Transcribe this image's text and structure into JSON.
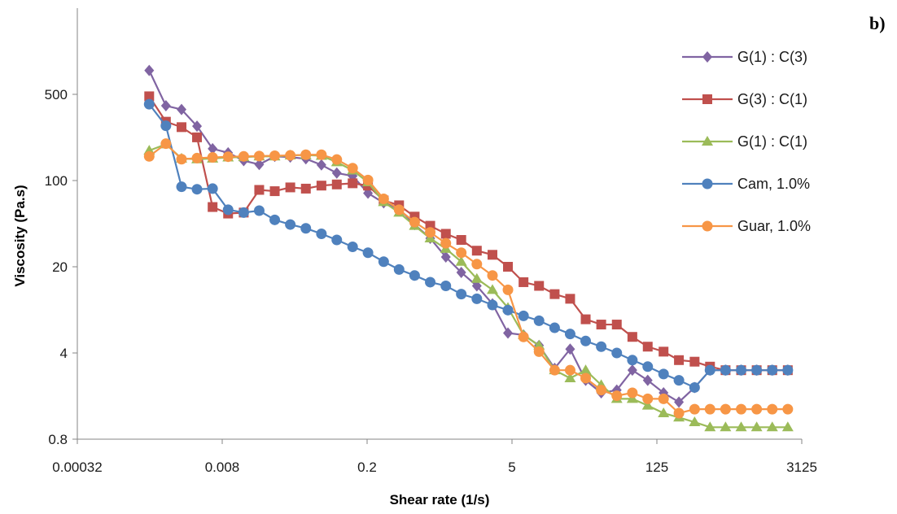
{
  "panel_label": "b)",
  "chart_data": {
    "type": "line",
    "xlabel": "Shear rate (1/s)",
    "ylabel": "Viscosity (Pa.s)",
    "x_scale": "log5",
    "y_scale": "log5",
    "xlim": [
      0.00032,
      3125
    ],
    "ylim": [
      0.8,
      2500
    ],
    "x_ticks": [
      0.00032,
      0.008,
      0.2,
      5,
      125,
      3125
    ],
    "x_tick_labels": [
      "0.00032",
      "0.008",
      "0.2",
      "5",
      "125",
      "3125"
    ],
    "y_ticks": [
      0.8,
      4,
      20,
      100,
      500
    ],
    "y_tick_labels": [
      "0.8",
      "4",
      "20",
      "100",
      "500"
    ],
    "grid": false,
    "legend": "right",
    "series": [
      {
        "name": "G(1) : C(3)",
        "color": "#8064A2",
        "marker": "diamond",
        "x": [
          0.00158,
          0.00229,
          0.00324,
          0.00457,
          0.00646,
          0.00912,
          0.0129,
          0.0182,
          0.0257,
          0.0363,
          0.0513,
          0.0725,
          0.102,
          0.145,
          0.204,
          0.289,
          0.407,
          0.575,
          0.813,
          1.15,
          1.62,
          2.29,
          3.24,
          4.57,
          6.46,
          9.12,
          12.9,
          18.2,
          25.7,
          36.3,
          51.3,
          72.5,
          102,
          145,
          204,
          289,
          407,
          575,
          813,
          1148,
          1622,
          2291
        ],
        "y": [
          781,
          404,
          377,
          276,
          181,
          168,
          145,
          135,
          157,
          155,
          150,
          134,
          115,
          109,
          79,
          66,
          59,
          44,
          34,
          24,
          18,
          14,
          10,
          5.8,
          5.6,
          4.6,
          3.0,
          4.3,
          2.4,
          1.9,
          2.0,
          2.9,
          2.4,
          1.9,
          1.6,
          2.1,
          2.9,
          2.9,
          2.9,
          2.9,
          2.9,
          2.9
        ]
      },
      {
        "name": "G(3) : C(1)",
        "color": "#C0504D",
        "marker": "square",
        "x": [
          0.00158,
          0.00229,
          0.00324,
          0.00457,
          0.00646,
          0.00912,
          0.0129,
          0.0182,
          0.0257,
          0.0363,
          0.0513,
          0.0725,
          0.102,
          0.145,
          0.204,
          0.289,
          0.407,
          0.575,
          0.813,
          1.15,
          1.62,
          2.29,
          3.24,
          4.57,
          6.46,
          9.12,
          12.9,
          18.2,
          25.7,
          36.3,
          51.3,
          72.5,
          102,
          145,
          204,
          289,
          407,
          575,
          813,
          1148,
          1622,
          2291
        ],
        "y": [
          482,
          300,
          271,
          224,
          61,
          54,
          55,
          84,
          82,
          88,
          86,
          91,
          93,
          95,
          91,
          69,
          63,
          51,
          43,
          37,
          33,
          27,
          25,
          20,
          15,
          14,
          12,
          11,
          7.5,
          6.8,
          6.8,
          5.4,
          4.5,
          4.1,
          3.5,
          3.4,
          3.1,
          2.9,
          2.9,
          2.9,
          2.9,
          2.9
        ]
      },
      {
        "name": "G(1) : C(1)",
        "color": "#9BBB59",
        "marker": "triangle",
        "x": [
          0.00158,
          0.00229,
          0.00324,
          0.00457,
          0.00646,
          0.00912,
          0.0129,
          0.0182,
          0.0257,
          0.0363,
          0.0513,
          0.0725,
          0.102,
          0.145,
          0.204,
          0.289,
          0.407,
          0.575,
          0.813,
          1.15,
          1.62,
          2.29,
          3.24,
          4.57,
          6.46,
          9.12,
          12.9,
          18.2,
          25.7,
          36.3,
          51.3,
          72.5,
          102,
          145,
          204,
          289,
          407,
          575,
          813,
          1148,
          1622,
          2291
        ],
        "y": [
          175,
          197,
          151,
          149,
          151,
          154,
          155,
          157,
          157,
          160,
          161,
          159,
          141,
          121,
          97,
          67,
          55,
          43,
          34,
          28,
          22,
          16,
          13,
          9.3,
          5.6,
          4.6,
          2.9,
          2.5,
          2.9,
          2.2,
          1.7,
          1.7,
          1.5,
          1.3,
          1.2,
          1.1,
          1.0,
          1.0,
          1.0,
          1.0,
          1.0,
          1.0
        ]
      },
      {
        "name": "Cam, 1.0%",
        "color": "#4F81BD",
        "marker": "circle",
        "x": [
          0.00158,
          0.00229,
          0.00324,
          0.00457,
          0.00646,
          0.00912,
          0.0129,
          0.0182,
          0.0257,
          0.0363,
          0.0513,
          0.0725,
          0.102,
          0.145,
          0.204,
          0.289,
          0.407,
          0.575,
          0.813,
          1.15,
          1.62,
          2.29,
          3.24,
          4.57,
          6.46,
          9.12,
          12.9,
          18.2,
          25.7,
          36.3,
          51.3,
          72.5,
          102,
          145,
          204,
          289,
          407,
          575,
          813,
          1148,
          1622,
          2291
        ],
        "y": [
          416,
          278,
          89,
          85,
          86,
          58,
          55,
          57,
          48,
          44,
          41,
          37,
          33,
          29,
          26,
          22,
          19,
          17,
          15,
          14,
          12,
          11,
          9.8,
          8.9,
          8.0,
          7.3,
          6.4,
          5.7,
          5.0,
          4.5,
          4.0,
          3.5,
          3.1,
          2.7,
          2.4,
          2.1,
          2.9,
          2.9,
          2.9,
          2.9,
          2.9,
          2.9
        ]
      },
      {
        "name": "Guar, 1.0%",
        "color": "#F79646",
        "marker": "circle",
        "x": [
          0.00158,
          0.00229,
          0.00324,
          0.00457,
          0.00646,
          0.00912,
          0.0129,
          0.0182,
          0.0257,
          0.0363,
          0.0513,
          0.0725,
          0.102,
          0.145,
          0.204,
          0.289,
          0.407,
          0.575,
          0.813,
          1.15,
          1.62,
          2.29,
          3.24,
          4.57,
          6.46,
          9.12,
          12.9,
          18.2,
          25.7,
          36.3,
          51.3,
          72.5,
          102,
          145,
          204,
          289,
          407,
          575,
          813,
          1148,
          1622,
          2291
        ],
        "y": [
          157,
          199,
          149,
          152,
          154,
          156,
          157,
          158,
          159,
          160,
          162,
          162,
          148,
          126,
          101,
          71,
          58,
          46,
          38,
          31,
          26,
          21,
          17,
          13,
          5.4,
          4.1,
          2.9,
          2.9,
          2.5,
          2.0,
          1.8,
          1.9,
          1.7,
          1.7,
          1.3,
          1.4,
          1.4,
          1.4,
          1.4,
          1.4,
          1.4,
          1.4
        ]
      }
    ]
  }
}
